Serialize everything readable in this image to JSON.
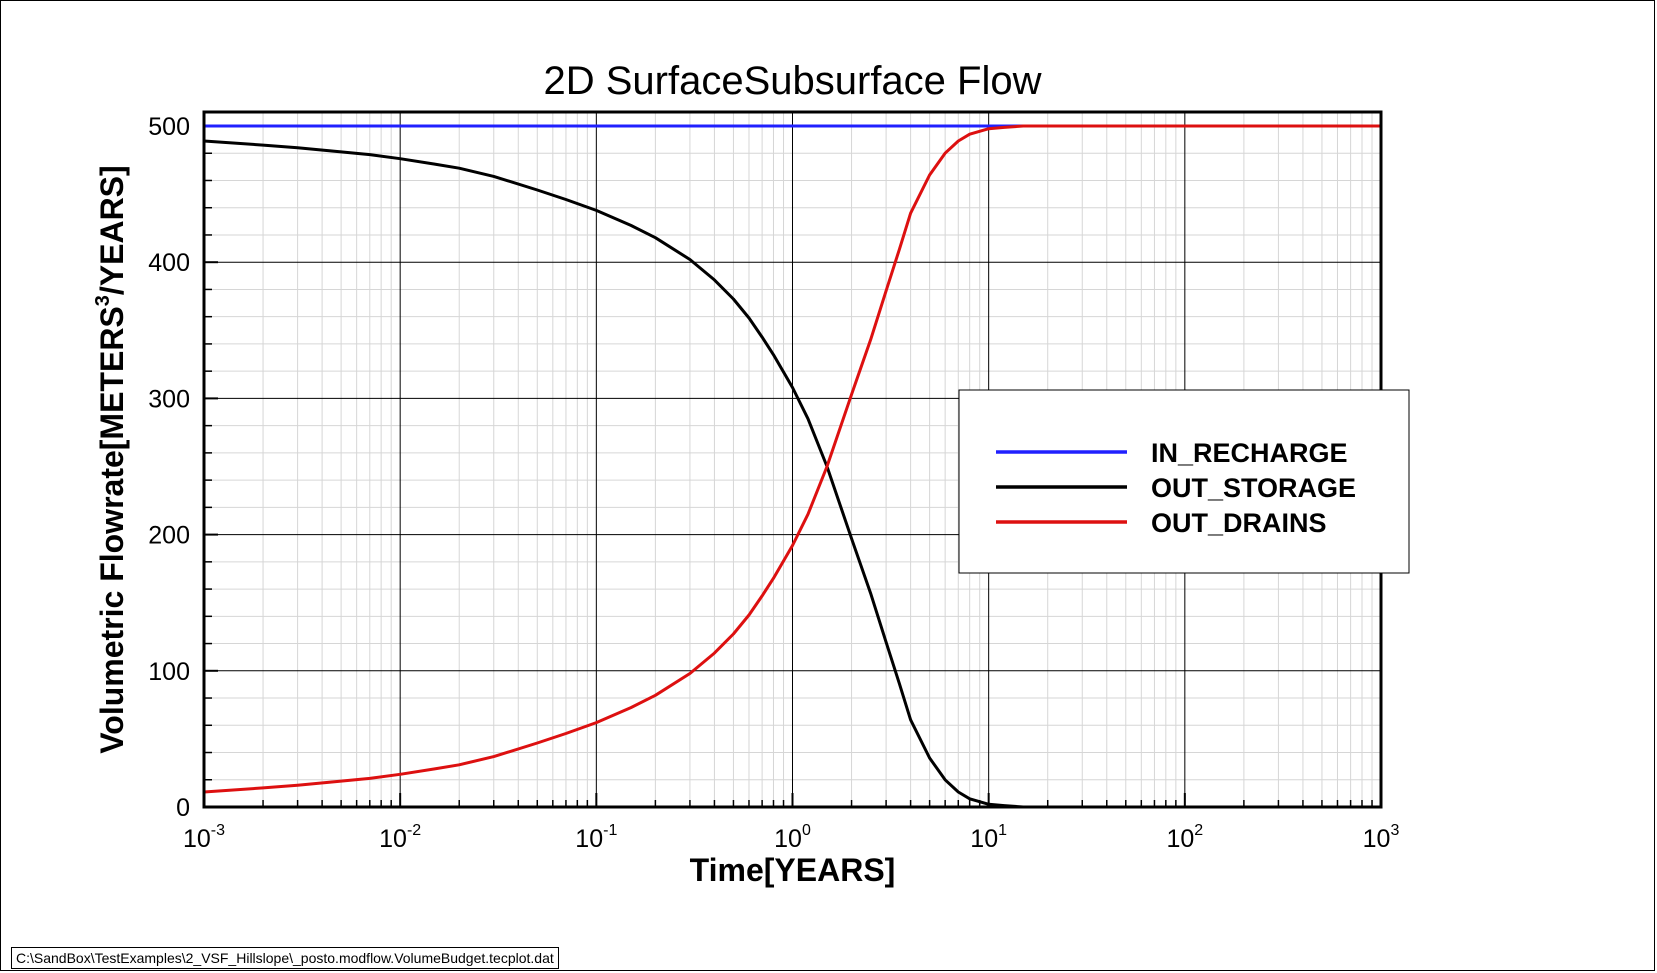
{
  "chart_data": {
    "type": "line",
    "title": "2D SurfaceSubsurface Flow",
    "xlabel": "Time[YEARS]",
    "ylabel": "Volumetric Flowrate[METERS3/YEARS]",
    "ylabel_parts": {
      "main": "Volumetric Flowrate[METERS",
      "sup": "3",
      "tail": "/YEARS]"
    },
    "x_scale": "log",
    "xlim": [
      0.001,
      1000
    ],
    "ylim": [
      0,
      500
    ],
    "grid": true,
    "legend_position": "center-right",
    "x_ticks": [
      {
        "value": 0.001,
        "base": "10",
        "exp": "-3"
      },
      {
        "value": 0.01,
        "base": "10",
        "exp": "-2"
      },
      {
        "value": 0.1,
        "base": "10",
        "exp": "-1"
      },
      {
        "value": 1,
        "base": "10",
        "exp": "0"
      },
      {
        "value": 10,
        "base": "10",
        "exp": "1"
      },
      {
        "value": 100,
        "base": "10",
        "exp": "2"
      },
      {
        "value": 1000,
        "base": "10",
        "exp": "3"
      }
    ],
    "y_ticks": [
      0,
      100,
      200,
      300,
      400,
      500
    ],
    "series": [
      {
        "name": "IN_RECHARGE",
        "color": "#2020ff",
        "x": [
          0.001,
          0.01,
          0.1,
          1,
          10,
          100,
          1000
        ],
        "y": [
          500,
          500,
          500,
          500,
          500,
          500,
          500
        ]
      },
      {
        "name": "OUT_STORAGE",
        "color": "#000000",
        "x": [
          0.001,
          0.002,
          0.003,
          0.005,
          0.007,
          0.01,
          0.015,
          0.02,
          0.03,
          0.05,
          0.07,
          0.1,
          0.15,
          0.2,
          0.3,
          0.4,
          0.5,
          0.6,
          0.7,
          0.8,
          1,
          1.2,
          1.5,
          2,
          2.5,
          3,
          3.5,
          4,
          5,
          6,
          7,
          8,
          10,
          12,
          15,
          20,
          50,
          100,
          1000
        ],
        "y": [
          489,
          486,
          484,
          481,
          479,
          476,
          472,
          469,
          463,
          453,
          446,
          438,
          427,
          418,
          402,
          387,
          373,
          359,
          345,
          332,
          308,
          285,
          250,
          197,
          157,
          121,
          91,
          64,
          36,
          20,
          11,
          6,
          2,
          1,
          0,
          0,
          0,
          0,
          0
        ]
      },
      {
        "name": "OUT_DRAINS",
        "color": "#dd1010",
        "x": [
          0.001,
          0.002,
          0.003,
          0.005,
          0.007,
          0.01,
          0.015,
          0.02,
          0.03,
          0.05,
          0.07,
          0.1,
          0.15,
          0.2,
          0.3,
          0.4,
          0.5,
          0.6,
          0.7,
          0.8,
          1,
          1.2,
          1.5,
          2,
          2.5,
          3,
          3.5,
          4,
          5,
          6,
          7,
          8,
          10,
          12,
          15,
          20,
          50,
          100,
          1000
        ],
        "y": [
          11,
          14,
          16,
          19,
          21,
          24,
          28,
          31,
          37,
          47,
          54,
          62,
          73,
          82,
          98,
          113,
          127,
          141,
          155,
          168,
          192,
          215,
          250,
          303,
          343,
          379,
          409,
          436,
          464,
          480,
          489,
          494,
          498,
          499,
          500,
          500,
          500,
          500,
          500
        ]
      }
    ]
  },
  "footer": {
    "file_path": "C:\\SandBox\\TestExamples\\2_VSF_Hillslope\\_posto.modflow.VolumeBudget.tecplot.dat"
  }
}
